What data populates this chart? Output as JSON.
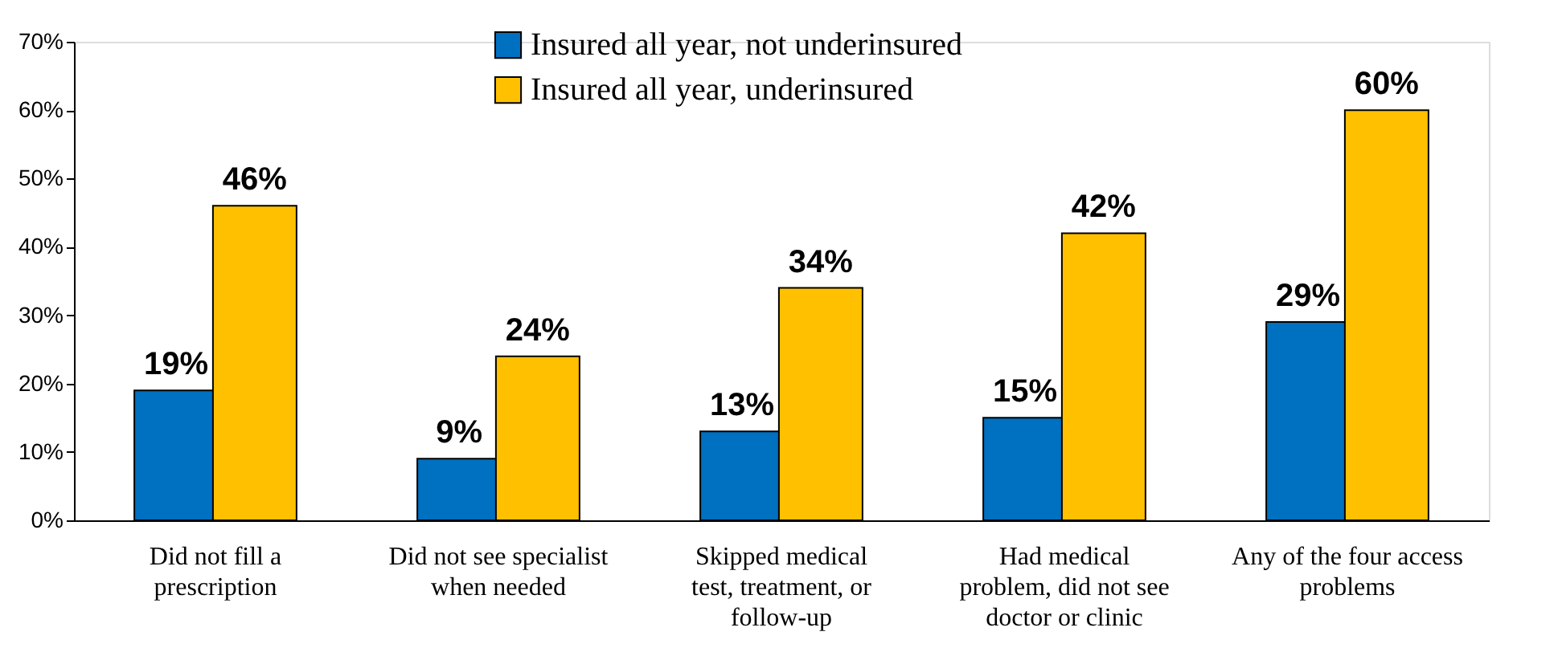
{
  "chart_data": {
    "type": "bar",
    "categories": [
      "Did not fill a\nprescription",
      "Did not see specialist\nwhen needed",
      "Skipped medical\ntest, treatment, or\nfollow-up",
      "Had medical\nproblem, did not see\ndoctor or clinic",
      "Any of the four access\nproblems"
    ],
    "series": [
      {
        "name": "Insured all year, not underinsured",
        "color": "#0070c0",
        "values": [
          19,
          9,
          13,
          15,
          29
        ],
        "value_labels": [
          "19%",
          "9%",
          "13%",
          "15%",
          "29%"
        ]
      },
      {
        "name": "Insured all year, underinsured",
        "color": "#ffc000",
        "values": [
          46,
          24,
          34,
          42,
          60
        ],
        "value_labels": [
          "46%",
          "24%",
          "34%",
          "42%",
          "60%"
        ]
      }
    ],
    "ylim": [
      0,
      70
    ],
    "yticks": [
      {
        "value": 0,
        "label": "0%"
      },
      {
        "value": 10,
        "label": "10%"
      },
      {
        "value": 20,
        "label": "20%"
      },
      {
        "value": 30,
        "label": "30%"
      },
      {
        "value": 40,
        "label": "40%"
      },
      {
        "value": 50,
        "label": "50%"
      },
      {
        "value": 60,
        "label": "60%"
      },
      {
        "value": 70,
        "label": "70%"
      }
    ],
    "grid": false,
    "legend": "top"
  }
}
